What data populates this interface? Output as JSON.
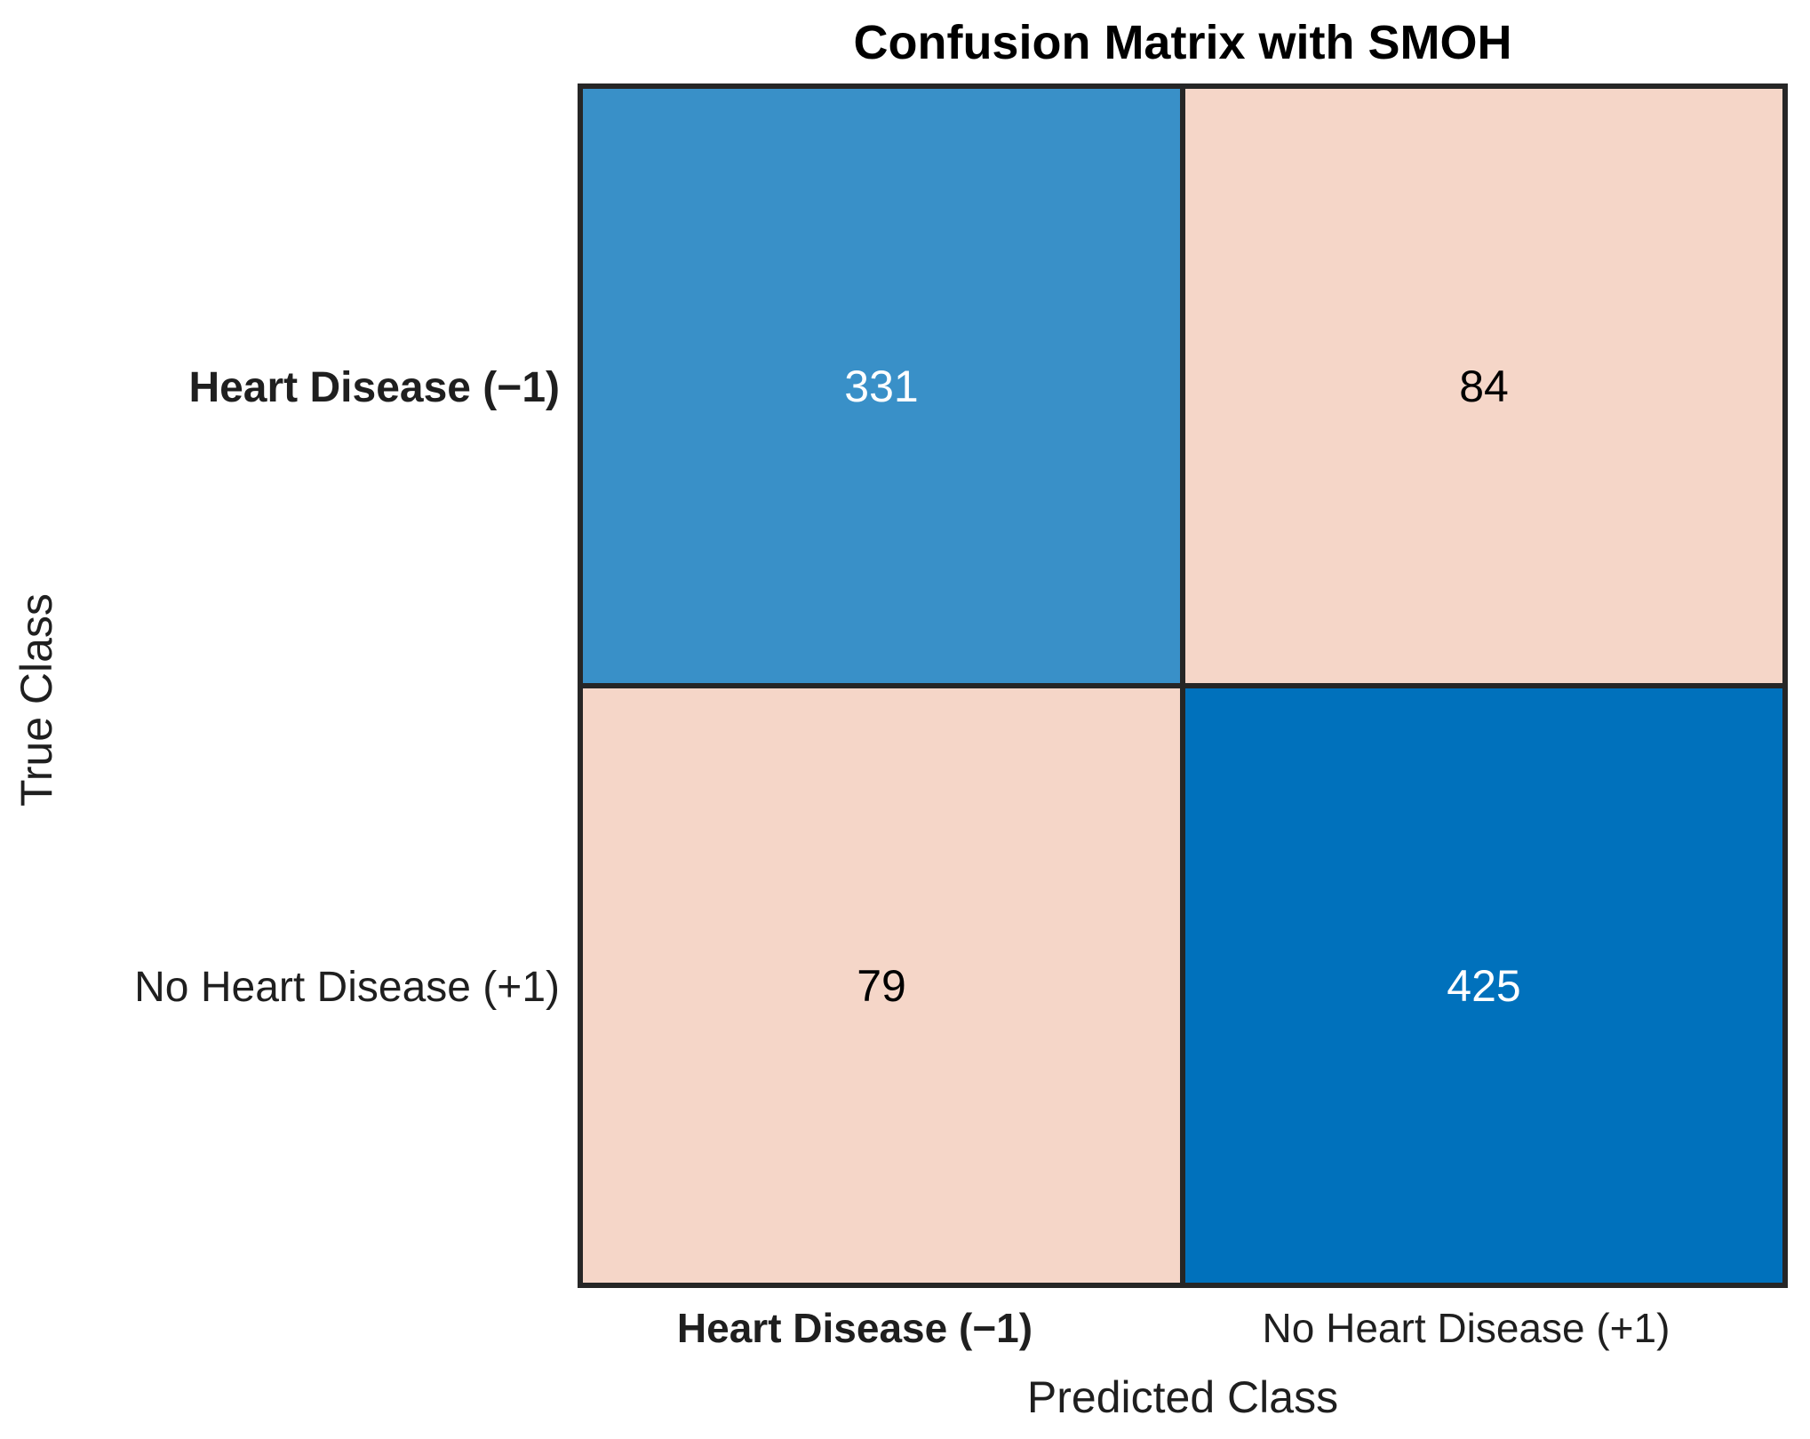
{
  "figure": {
    "title": "Confusion Matrix with SMOH",
    "x_axis_label": "Predicted Class",
    "y_axis_label": "True Class",
    "row_labels": [
      "Heart Disease (−1)",
      "No Heart Disease (+1)"
    ],
    "col_labels": [
      "Heart Disease (−1)",
      "No Heart Disease (+1)"
    ]
  },
  "cells": [
    {
      "row": "Heart Disease (−1)",
      "col": "Heart Disease (−1)",
      "value": "331",
      "bg": "#3990C8",
      "fg": "#FFFFFF"
    },
    {
      "row": "Heart Disease (−1)",
      "col": "No Heart Disease (+1)",
      "value": "84",
      "bg": "#F5D6C8",
      "fg": "#000000"
    },
    {
      "row": "No Heart Disease (+1)",
      "col": "Heart Disease (−1)",
      "value": "79",
      "bg": "#F5D6C8",
      "fg": "#000000"
    },
    {
      "row": "No Heart Disease (+1)",
      "col": "No Heart Disease (+1)",
      "value": "425",
      "bg": "#0071BC",
      "fg": "#FFFFFF"
    }
  ],
  "colors": {
    "cell_blue_medium": "#3990C8",
    "cell_blue_dark": "#0071BC",
    "cell_pink_light": "#F5D6C8",
    "grid_line": "#262626",
    "label_text": "#1F1F1F",
    "title_text": "#000000",
    "background": "#FFFFFF"
  },
  "chart_data": {
    "type": "heatmap",
    "subtype": "confusion-matrix",
    "title": "Confusion Matrix with SMOH",
    "xlabel": "Predicted Class",
    "ylabel": "True Class",
    "x_categories": [
      "Heart Disease (−1)",
      "No Heart Disease (+1)"
    ],
    "y_categories": [
      "Heart Disease (−1)",
      "No Heart Disease (+1)"
    ],
    "matrix": [
      [
        331,
        84
      ],
      [
        79,
        425
      ]
    ],
    "cell_colors": [
      [
        "#3990C8",
        "#F5D6C8"
      ],
      [
        "#F5D6C8",
        "#0071BC"
      ]
    ],
    "value_text_colors": [
      [
        "#FFFFFF",
        "#000000"
      ],
      [
        "#000000",
        "#FFFFFF"
      ]
    ],
    "legend": "none",
    "grid": "on",
    "grid_color": "#262626"
  }
}
